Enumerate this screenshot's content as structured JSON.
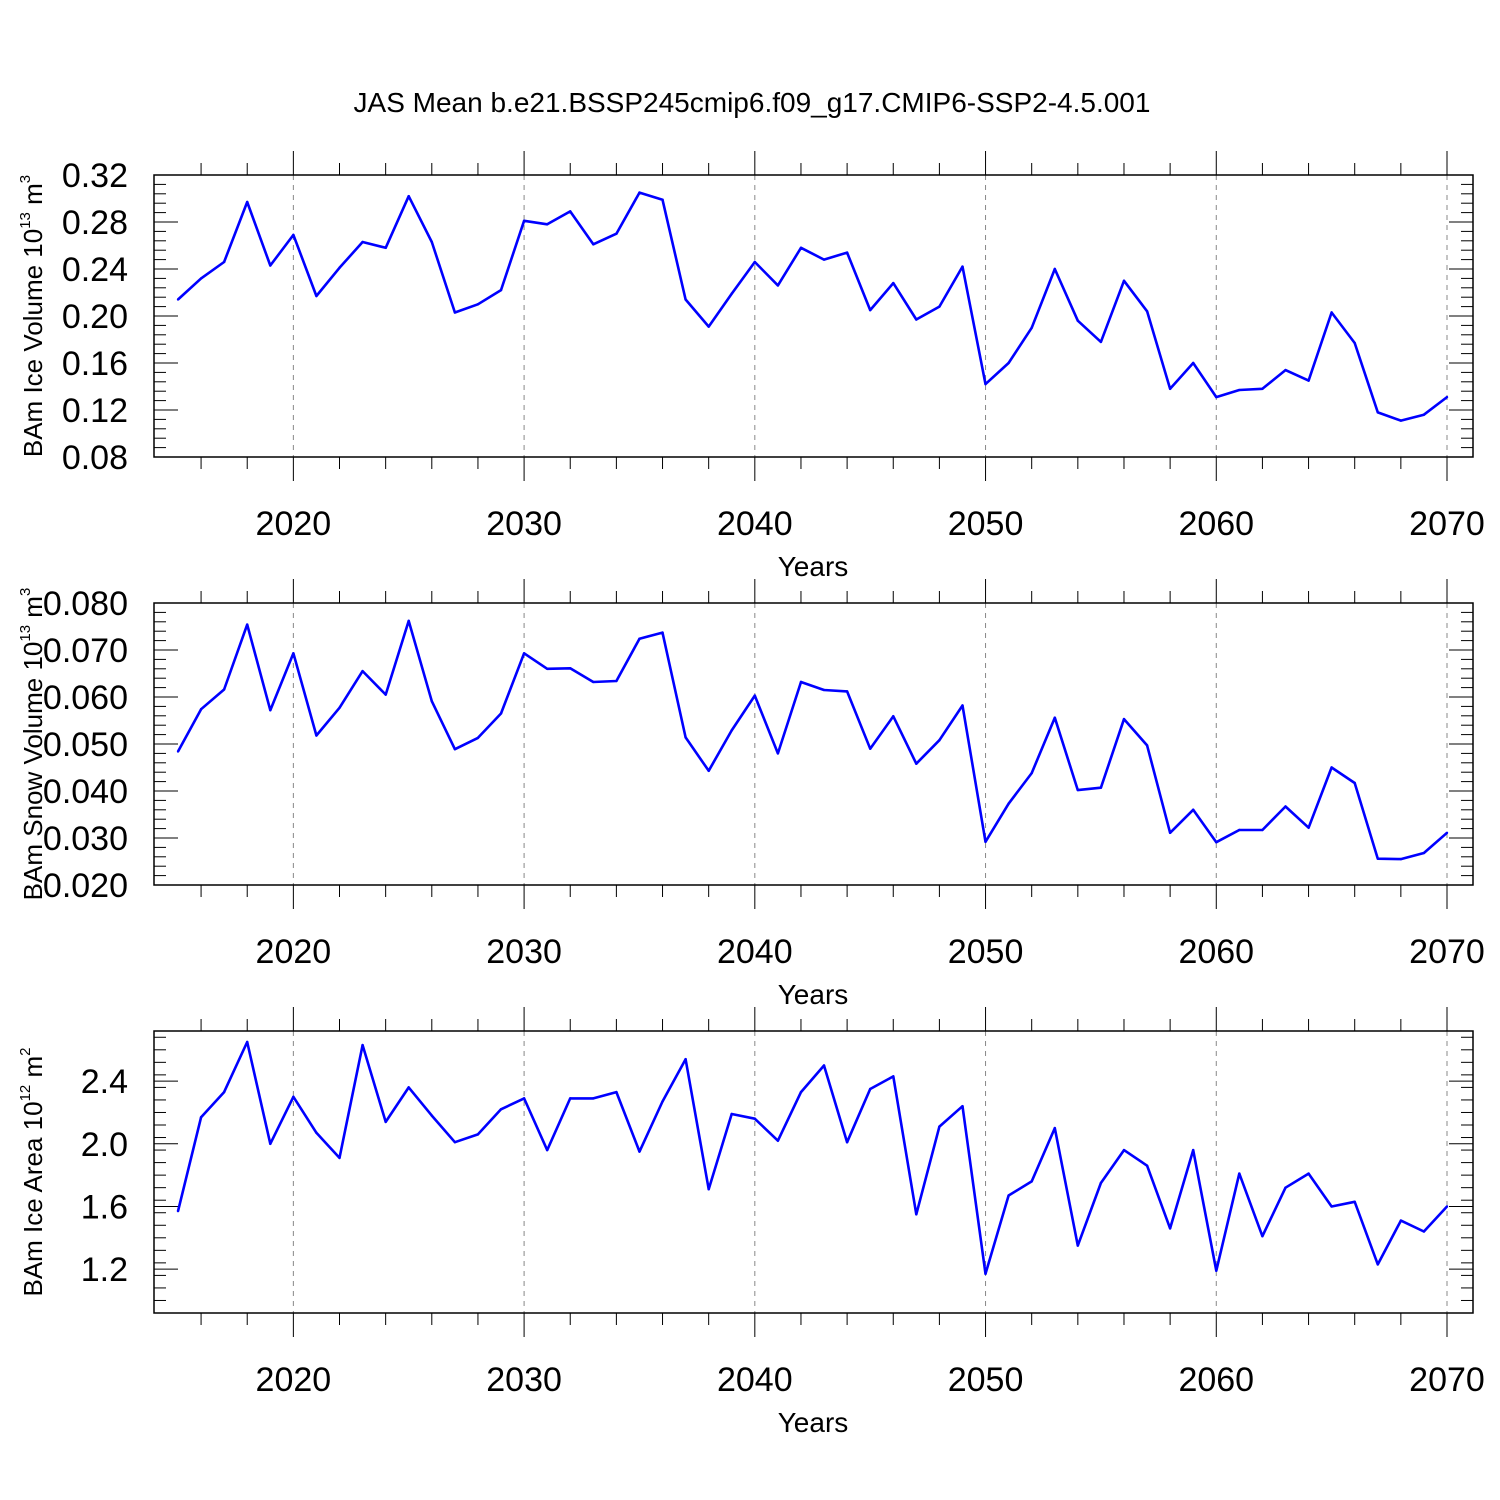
{
  "title": "JAS Mean b.e21.BSSP245cmip6.f09_g17.CMIP6-SSP2-4.5.001",
  "colors": {
    "line": "#0000ff",
    "axis": "#000000",
    "grid": "#888888"
  },
  "chart_data": [
    {
      "type": "line",
      "ylabel_main": "BAm Ice Volume 10",
      "ylabel_exp": "13",
      "ylabel_unit": " m",
      "ylabel_unit_exp": "3",
      "xlabel": "Years",
      "xlim": [
        2015,
        2070
      ],
      "ylim": [
        0.08,
        0.32
      ],
      "yticks": [
        0.08,
        0.12,
        0.16,
        0.2,
        0.24,
        0.28,
        0.32
      ],
      "ytick_labels": [
        "0.08",
        "0.12",
        "0.16",
        "0.20",
        "0.24",
        "0.28",
        "0.32"
      ],
      "xticks": [
        2020,
        2030,
        2040,
        2050,
        2060,
        2070
      ],
      "xtick_labels": [
        "2020",
        "2030",
        "2040",
        "2050",
        "2060",
        "2070"
      ],
      "grid": "vertical dashed at major x ticks",
      "x": [
        2015,
        2016,
        2017,
        2018,
        2019,
        2020,
        2021,
        2022,
        2023,
        2024,
        2025,
        2026,
        2027,
        2028,
        2029,
        2030,
        2031,
        2032,
        2033,
        2034,
        2035,
        2036,
        2037,
        2038,
        2039,
        2040,
        2041,
        2042,
        2043,
        2044,
        2045,
        2046,
        2047,
        2048,
        2049,
        2050,
        2051,
        2052,
        2053,
        2054,
        2055,
        2056,
        2057,
        2058,
        2059,
        2060,
        2061,
        2062,
        2063,
        2064,
        2065,
        2066,
        2067,
        2068,
        2069,
        2070
      ],
      "y": [
        0.214,
        0.232,
        0.246,
        0.297,
        0.243,
        0.269,
        0.217,
        0.241,
        0.263,
        0.258,
        0.302,
        0.263,
        0.203,
        0.21,
        0.222,
        0.281,
        0.278,
        0.289,
        0.261,
        0.27,
        0.305,
        0.299,
        0.214,
        0.191,
        0.219,
        0.246,
        0.226,
        0.258,
        0.248,
        0.254,
        0.205,
        0.228,
        0.197,
        0.208,
        0.242,
        0.142,
        0.16,
        0.19,
        0.24,
        0.196,
        0.178,
        0.23,
        0.204,
        0.138,
        0.16,
        0.131,
        0.137,
        0.138,
        0.154,
        0.145,
        0.203,
        0.177,
        0.118,
        0.111,
        0.116,
        0.131
      ]
    },
    {
      "type": "line",
      "ylabel_main": "BAm Snow Volume 10",
      "ylabel_exp": "13",
      "ylabel_unit": " m",
      "ylabel_unit_exp": "3",
      "xlabel": "Years",
      "xlim": [
        2015,
        2070
      ],
      "ylim": [
        0.02,
        0.08
      ],
      "yticks": [
        0.02,
        0.03,
        0.04,
        0.05,
        0.06,
        0.07,
        0.08
      ],
      "ytick_labels": [
        "0.020",
        "0.030",
        "0.040",
        "0.050",
        "0.060",
        "0.070",
        "0.080"
      ],
      "xticks": [
        2020,
        2030,
        2040,
        2050,
        2060,
        2070
      ],
      "xtick_labels": [
        "2020",
        "2030",
        "2040",
        "2050",
        "2060",
        "2070"
      ],
      "grid": "vertical dashed at major x ticks",
      "x": [
        2015,
        2016,
        2017,
        2018,
        2019,
        2020,
        2021,
        2022,
        2023,
        2024,
        2025,
        2026,
        2027,
        2028,
        2029,
        2030,
        2031,
        2032,
        2033,
        2034,
        2035,
        2036,
        2037,
        2038,
        2039,
        2040,
        2041,
        2042,
        2043,
        2044,
        2045,
        2046,
        2047,
        2048,
        2049,
        2050,
        2051,
        2052,
        2053,
        2054,
        2055,
        2056,
        2057,
        2058,
        2059,
        2060,
        2061,
        2062,
        2063,
        2064,
        2065,
        2066,
        2067,
        2068,
        2069,
        2070
      ],
      "y": [
        0.0484,
        0.0574,
        0.0616,
        0.0754,
        0.0572,
        0.0693,
        0.0518,
        0.0577,
        0.0655,
        0.0605,
        0.0762,
        0.0591,
        0.0489,
        0.0513,
        0.0565,
        0.0693,
        0.066,
        0.0661,
        0.0632,
        0.0634,
        0.0724,
        0.0737,
        0.0514,
        0.0443,
        0.0529,
        0.0603,
        0.048,
        0.0632,
        0.0615,
        0.0612,
        0.049,
        0.0559,
        0.0458,
        0.0508,
        0.0582,
        0.0292,
        0.0373,
        0.0438,
        0.0556,
        0.0402,
        0.0407,
        0.0553,
        0.0497,
        0.0311,
        0.036,
        0.0291,
        0.0317,
        0.0317,
        0.0367,
        0.0322,
        0.045,
        0.0417,
        0.0256,
        0.0255,
        0.0268,
        0.0311
      ]
    },
    {
      "type": "line",
      "ylabel_main": "BAm Ice Area 10",
      "ylabel_exp": "12",
      "ylabel_unit": " m",
      "ylabel_unit_exp": "2",
      "xlabel": "Years",
      "xlim": [
        2015,
        2070
      ],
      "ylim": [
        0.92,
        2.72
      ],
      "yticks": [
        1.2,
        1.6,
        2.0,
        2.4
      ],
      "ytick_labels": [
        "1.2",
        "1.6",
        "2.0",
        "2.4"
      ],
      "xticks": [
        2020,
        2030,
        2040,
        2050,
        2060,
        2070
      ],
      "xtick_labels": [
        "2020",
        "2030",
        "2040",
        "2050",
        "2060",
        "2070"
      ],
      "grid": "vertical dashed at major x ticks",
      "x": [
        2015,
        2016,
        2017,
        2018,
        2019,
        2020,
        2021,
        2022,
        2023,
        2024,
        2025,
        2026,
        2027,
        2028,
        2029,
        2030,
        2031,
        2032,
        2033,
        2034,
        2035,
        2036,
        2037,
        2038,
        2039,
        2040,
        2041,
        2042,
        2043,
        2044,
        2045,
        2046,
        2047,
        2048,
        2049,
        2050,
        2051,
        2052,
        2053,
        2054,
        2055,
        2056,
        2057,
        2058,
        2059,
        2060,
        2061,
        2062,
        2063,
        2064,
        2065,
        2066,
        2067,
        2068,
        2069,
        2070
      ],
      "y": [
        1.57,
        2.17,
        2.33,
        2.65,
        2.0,
        2.3,
        2.07,
        1.91,
        2.63,
        2.14,
        2.36,
        2.18,
        2.01,
        2.06,
        2.22,
        2.29,
        1.96,
        2.29,
        2.29,
        2.33,
        1.95,
        2.27,
        2.54,
        1.71,
        2.19,
        2.16,
        2.02,
        2.33,
        2.5,
        2.01,
        2.35,
        2.43,
        1.55,
        2.11,
        2.24,
        1.17,
        1.67,
        1.76,
        2.1,
        1.35,
        1.75,
        1.96,
        1.86,
        1.46,
        1.96,
        1.19,
        1.81,
        1.41,
        1.72,
        1.81,
        1.6,
        1.63,
        1.23,
        1.51,
        1.44,
        1.6
      ]
    }
  ]
}
